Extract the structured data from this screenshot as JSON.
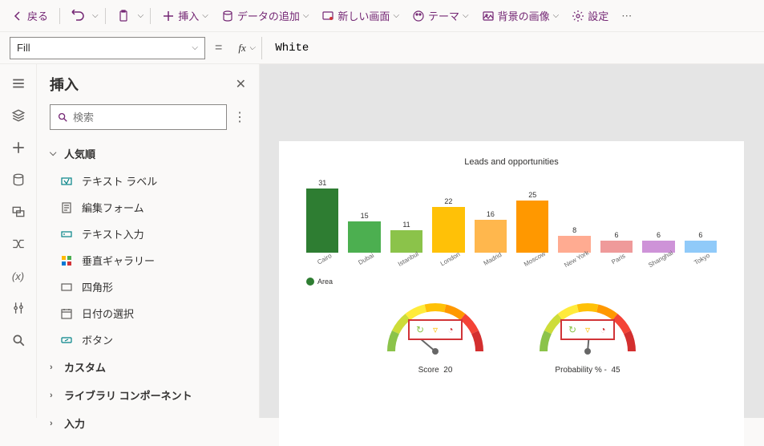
{
  "toolbar": {
    "back": "戻る",
    "insert": "挿入",
    "add_data": "データの追加",
    "new_screen": "新しい画面",
    "theme": "テーマ",
    "bg_image": "背景の画像",
    "settings": "設定"
  },
  "formula": {
    "property": "Fill",
    "value": "White"
  },
  "panel": {
    "title": "挿入",
    "search_placeholder": "検索",
    "categories": {
      "popular": "人気順",
      "custom": "カスタム",
      "library": "ライブラリ コンポーネント",
      "input": "入力"
    },
    "items": {
      "text_label": "テキスト ラベル",
      "edit_form": "編集フォーム",
      "text_input": "テキスト入力",
      "vertical_gallery": "垂直ギャラリー",
      "rectangle": "四角形",
      "date_picker": "日付の選択",
      "button": "ボタン"
    }
  },
  "chart": {
    "title": "Leads and opportunities",
    "type": "bar",
    "legend_label": "Area",
    "legend_color": "#2e7d32",
    "bars": [
      {
        "label": "Cairo",
        "value": 31,
        "color": "#2e7d32"
      },
      {
        "label": "Dubai",
        "value": 15,
        "color": "#4caf50"
      },
      {
        "label": "Istanbul",
        "value": 11,
        "color": "#8bc34a"
      },
      {
        "label": "London",
        "value": 22,
        "color": "#ffc107"
      },
      {
        "label": "Madrid",
        "value": 16,
        "color": "#ffb74d"
      },
      {
        "label": "Moscow",
        "value": 25,
        "color": "#ff9800"
      },
      {
        "label": "New York",
        "value": 8,
        "color": "#ffab91"
      },
      {
        "label": "Paris",
        "value": 6,
        "color": "#ef9a9a"
      },
      {
        "label": "Shanghai",
        "value": 6,
        "color": "#ce93d8"
      },
      {
        "label": "Tokyo",
        "value": 6,
        "color": "#90caf9"
      }
    ],
    "max_value": 31,
    "bar_area_height": 80
  },
  "gauges": [
    {
      "label": "Score",
      "value": 20,
      "needle_angle": -50
    },
    {
      "label": "Probability % -",
      "value": 45,
      "needle_angle": 5
    }
  ],
  "gauge_colors": {
    "segments": [
      "#8bc34a",
      "#cddc39",
      "#ffeb3b",
      "#ffc107",
      "#ff9800",
      "#f44336",
      "#d32f2f"
    ]
  }
}
